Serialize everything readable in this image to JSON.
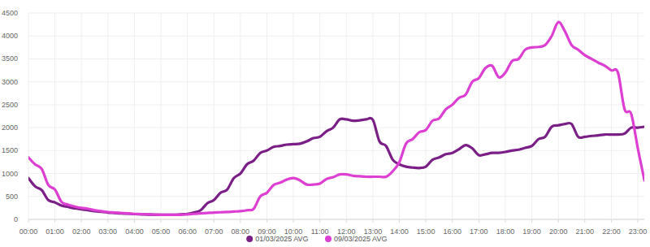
{
  "chart_data": {
    "type": "line",
    "categories": [
      "00:00",
      null,
      null,
      null,
      "01:00",
      null,
      null,
      null,
      "02:00",
      null,
      null,
      null,
      "03:00",
      null,
      null,
      null,
      "04:00",
      null,
      null,
      null,
      "05:00",
      null,
      null,
      null,
      "06:00",
      null,
      null,
      null,
      "07:00",
      null,
      null,
      null,
      "08:00",
      null,
      null,
      null,
      "09:00",
      null,
      null,
      null,
      "10:00",
      null,
      null,
      null,
      "11:00",
      null,
      null,
      null,
      "12:00",
      null,
      null,
      null,
      "13:00",
      null,
      null,
      null,
      "14:00",
      null,
      null,
      null,
      "15:00",
      null,
      null,
      null,
      "16:00",
      null,
      null,
      null,
      "17:00",
      null,
      null,
      null,
      "18:00",
      null,
      null,
      null,
      "19:00",
      null,
      null,
      null,
      "20:00",
      null,
      null,
      null,
      "21:00",
      null,
      null,
      null,
      "22:00",
      null,
      null,
      null,
      "23:00",
      null
    ],
    "series": [
      {
        "name": "01/03/2025 AVG",
        "color": "#7a1f86",
        "values": [
          900,
          720,
          640,
          420,
          370,
          300,
          270,
          240,
          220,
          200,
          180,
          165,
          150,
          140,
          130,
          125,
          115,
          110,
          105,
          100,
          100,
          100,
          100,
          110,
          120,
          150,
          200,
          350,
          420,
          580,
          650,
          900,
          1000,
          1200,
          1280,
          1450,
          1500,
          1580,
          1600,
          1630,
          1640,
          1650,
          1700,
          1770,
          1800,
          1920,
          2000,
          2180,
          2180,
          2150,
          2160,
          2180,
          2170,
          1700,
          1600,
          1300,
          1200,
          1150,
          1130,
          1120,
          1150,
          1300,
          1350,
          1420,
          1450,
          1530,
          1620,
          1550,
          1400,
          1420,
          1450,
          1450,
          1470,
          1500,
          1520,
          1560,
          1600,
          1750,
          1800,
          2020,
          2050,
          2080,
          2080,
          1800,
          1800,
          1820,
          1830,
          1850,
          1850,
          1850,
          1870,
          2000,
          2000,
          2020
        ]
      },
      {
        "name": "09/03/2025 AVG",
        "color": "#dc3fd2",
        "values": [
          1350,
          1200,
          1100,
          750,
          650,
          380,
          320,
          280,
          250,
          230,
          200,
          180,
          160,
          150,
          140,
          130,
          120,
          115,
          110,
          105,
          100,
          100,
          100,
          100,
          110,
          120,
          130,
          140,
          150,
          155,
          160,
          170,
          180,
          200,
          230,
          500,
          580,
          750,
          800,
          870,
          900,
          850,
          760,
          760,
          780,
          880,
          920,
          980,
          980,
          950,
          940,
          930,
          930,
          930,
          930,
          1050,
          1250,
          1650,
          1750,
          1900,
          1950,
          2150,
          2200,
          2400,
          2500,
          2650,
          2720,
          3000,
          3080,
          3300,
          3350,
          3100,
          3200,
          3450,
          3500,
          3700,
          3750,
          3760,
          3800,
          4000,
          4300,
          4100,
          3800,
          3700,
          3580,
          3500,
          3420,
          3350,
          3250,
          3200,
          2400,
          2300,
          1550,
          850
        ]
      }
    ],
    "ylim": [
      0,
      4500
    ],
    "yticks": [
      0,
      500,
      1000,
      1500,
      2000,
      2500,
      3000,
      3500,
      4000,
      4500
    ],
    "grid": true,
    "legend": "bottom"
  }
}
